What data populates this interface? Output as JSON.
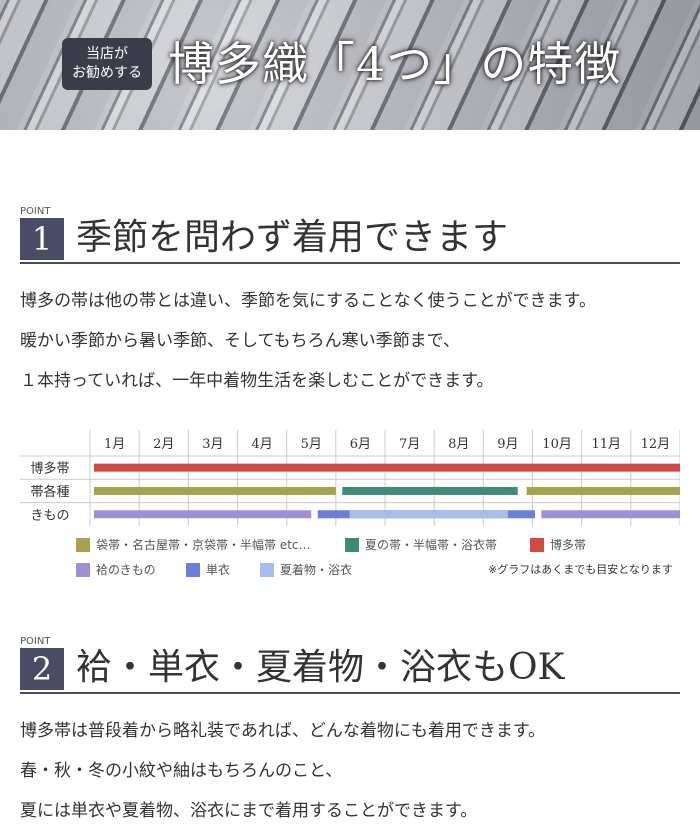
{
  "banner": {
    "badge_line1": "当店が",
    "badge_line2": "お勧めする",
    "title": "博多織「4つ」の特徴"
  },
  "point1": {
    "label": "POINT",
    "number": "1",
    "title": "季節を問わず着用できます",
    "lines": [
      "博多の帯は他の帯とは違い、季節を気にすることなく使うことができます。",
      "暖かい季節から暑い季節、そしてもちろん寒い季節まで、",
      "１本持っていれば、一年中着物生活を楽しむことができます。"
    ]
  },
  "chart_data": {
    "type": "gantt",
    "months": [
      "1月",
      "2月",
      "3月",
      "4月",
      "5月",
      "6月",
      "7月",
      "8月",
      "9月",
      "10月",
      "11月",
      "12月"
    ],
    "rows": [
      {
        "label": "博多帯",
        "bars": [
          {
            "from": 0,
            "to": 12,
            "item": "博多帯"
          }
        ]
      },
      {
        "label": "帯各種",
        "bars": [
          {
            "from": 0,
            "to": 5,
            "item": "袋帯"
          },
          {
            "from": 5.05,
            "to": 8.7,
            "item": "夏帯"
          },
          {
            "from": 8.8,
            "to": 12,
            "item": "袋帯"
          }
        ]
      },
      {
        "label": "きもの",
        "bars": [
          {
            "from": 0,
            "to": 4.5,
            "item": "袷"
          },
          {
            "from": 4.55,
            "to": 9.05,
            "item": "単衣"
          },
          {
            "from": 5.2,
            "to": 8.5,
            "item": "夏着物"
          },
          {
            "from": 9.1,
            "to": 12,
            "item": "袷"
          }
        ]
      }
    ],
    "legend": [
      {
        "key": "袋帯",
        "label": "袋帯・名古屋帯・京袋帯・半幅帯 etc…",
        "color": "#a6a24e"
      },
      {
        "key": "夏帯",
        "label": "夏の帯・半幅帯・浴衣帯",
        "color": "#3f8b7a"
      },
      {
        "key": "博多帯",
        "label": "博多帯",
        "color": "#d14b44"
      },
      {
        "key": "袷",
        "label": "袷のきもの",
        "color": "#9f8fd6"
      },
      {
        "key": "単衣",
        "label": "単衣",
        "color": "#6a7fd8"
      },
      {
        "key": "夏着物",
        "label": "夏着物・浴衣",
        "color": "#a4c0ea"
      }
    ],
    "note": "※グラフはあくまでも目安となります"
  },
  "point2": {
    "label": "POINT",
    "number": "2",
    "title": "袷・単衣・夏着物・浴衣もOK",
    "lines": [
      "博多帯は普段着から略礼装であれば、どんな着物にも着用できます。",
      "春・秋・冬の小紋や紬はもちろんのこと、",
      "夏には単衣や夏着物、浴衣にまで着用することができます。"
    ]
  }
}
